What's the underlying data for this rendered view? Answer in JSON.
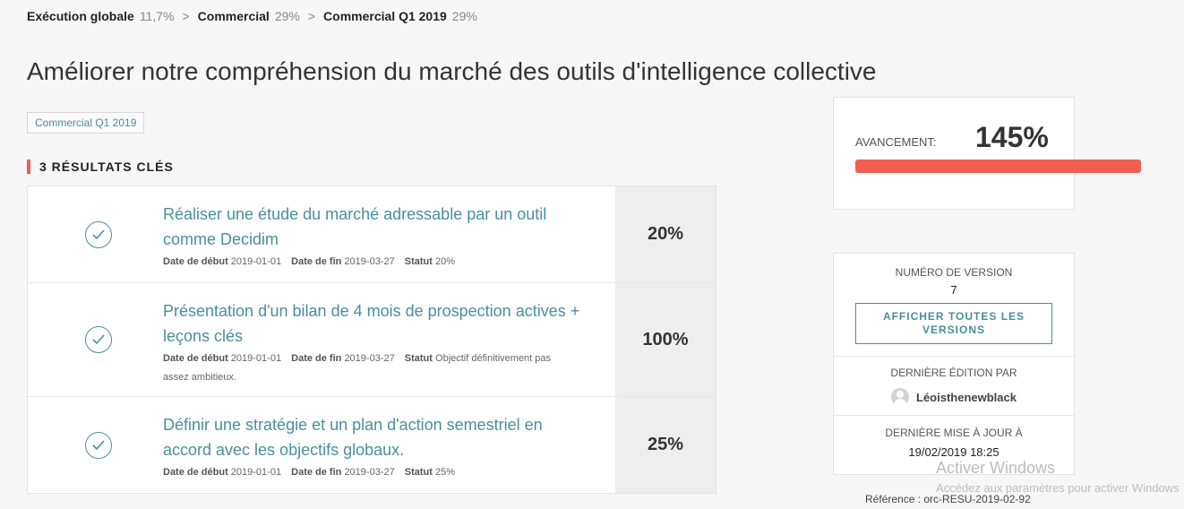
{
  "breadcrumb": [
    {
      "name": "Exécution globale",
      "pct": "11,7%"
    },
    {
      "name": "Commercial",
      "pct": "29%"
    },
    {
      "name": "Commercial Q1 2019",
      "pct": "29%"
    }
  ],
  "breadcrumb_separator": ">",
  "page_title": "Améliorer notre compréhension du marché des outils d'intelligence collective",
  "tag": "Commercial Q1 2019",
  "key_results_heading": "3 RÉSULTATS CLÉS",
  "meta_labels": {
    "start": "Date de début",
    "end": "Date de fin",
    "status": "Statut"
  },
  "key_results": [
    {
      "title_line1": "Réaliser une étude du marché adressable par un outil",
      "title_line2": "comme Decidim",
      "start": "2019-01-01",
      "end": "2019-03-27",
      "status": "20%",
      "status_line2": "",
      "progress": "20%"
    },
    {
      "title_line1": "Présentation d'un bilan de 4 mois de prospection actives +",
      "title_line2": "leçons clés",
      "start": "2019-01-01",
      "end": "2019-03-27",
      "status": "Objectif définitivement pas",
      "status_line2": "assez ambitieux.",
      "progress": "100%"
    },
    {
      "title_line1": "Définir une stratégie et un plan d'action semestriel en",
      "title_line2": "accord avec les objectifs globaux.",
      "start": "2019-01-01",
      "end": "2019-03-27",
      "status": "25%",
      "status_line2": "",
      "progress": "25%"
    }
  ],
  "progress": {
    "label": "AVANCEMENT:",
    "value": "145%",
    "fill_fraction": 1.45,
    "bar_color": "#ef5e4e"
  },
  "version": {
    "label": "NUMÉRO DE VERSION",
    "number": "7",
    "button": "AFFICHER TOUTES LES VERSIONS"
  },
  "last_edit": {
    "label": "DERNIÈRE ÉDITION PAR",
    "author": "Léoisthenewblack"
  },
  "last_update": {
    "label": "DERNIÈRE MISE À JOUR À",
    "datetime": "19/02/2019 18:25"
  },
  "reference": "Référence : orc-RESU-2019-02-92",
  "windows_watermark": {
    "title": "Activer Windows",
    "subtitle": "Accédez aux paramètres pour activer Windows"
  },
  "colors": {
    "accent": "#4a8f9b",
    "progress": "#ef5e4e"
  },
  "icons": {
    "key_result": "check-circle-icon",
    "avatar": "user-avatar-icon"
  }
}
